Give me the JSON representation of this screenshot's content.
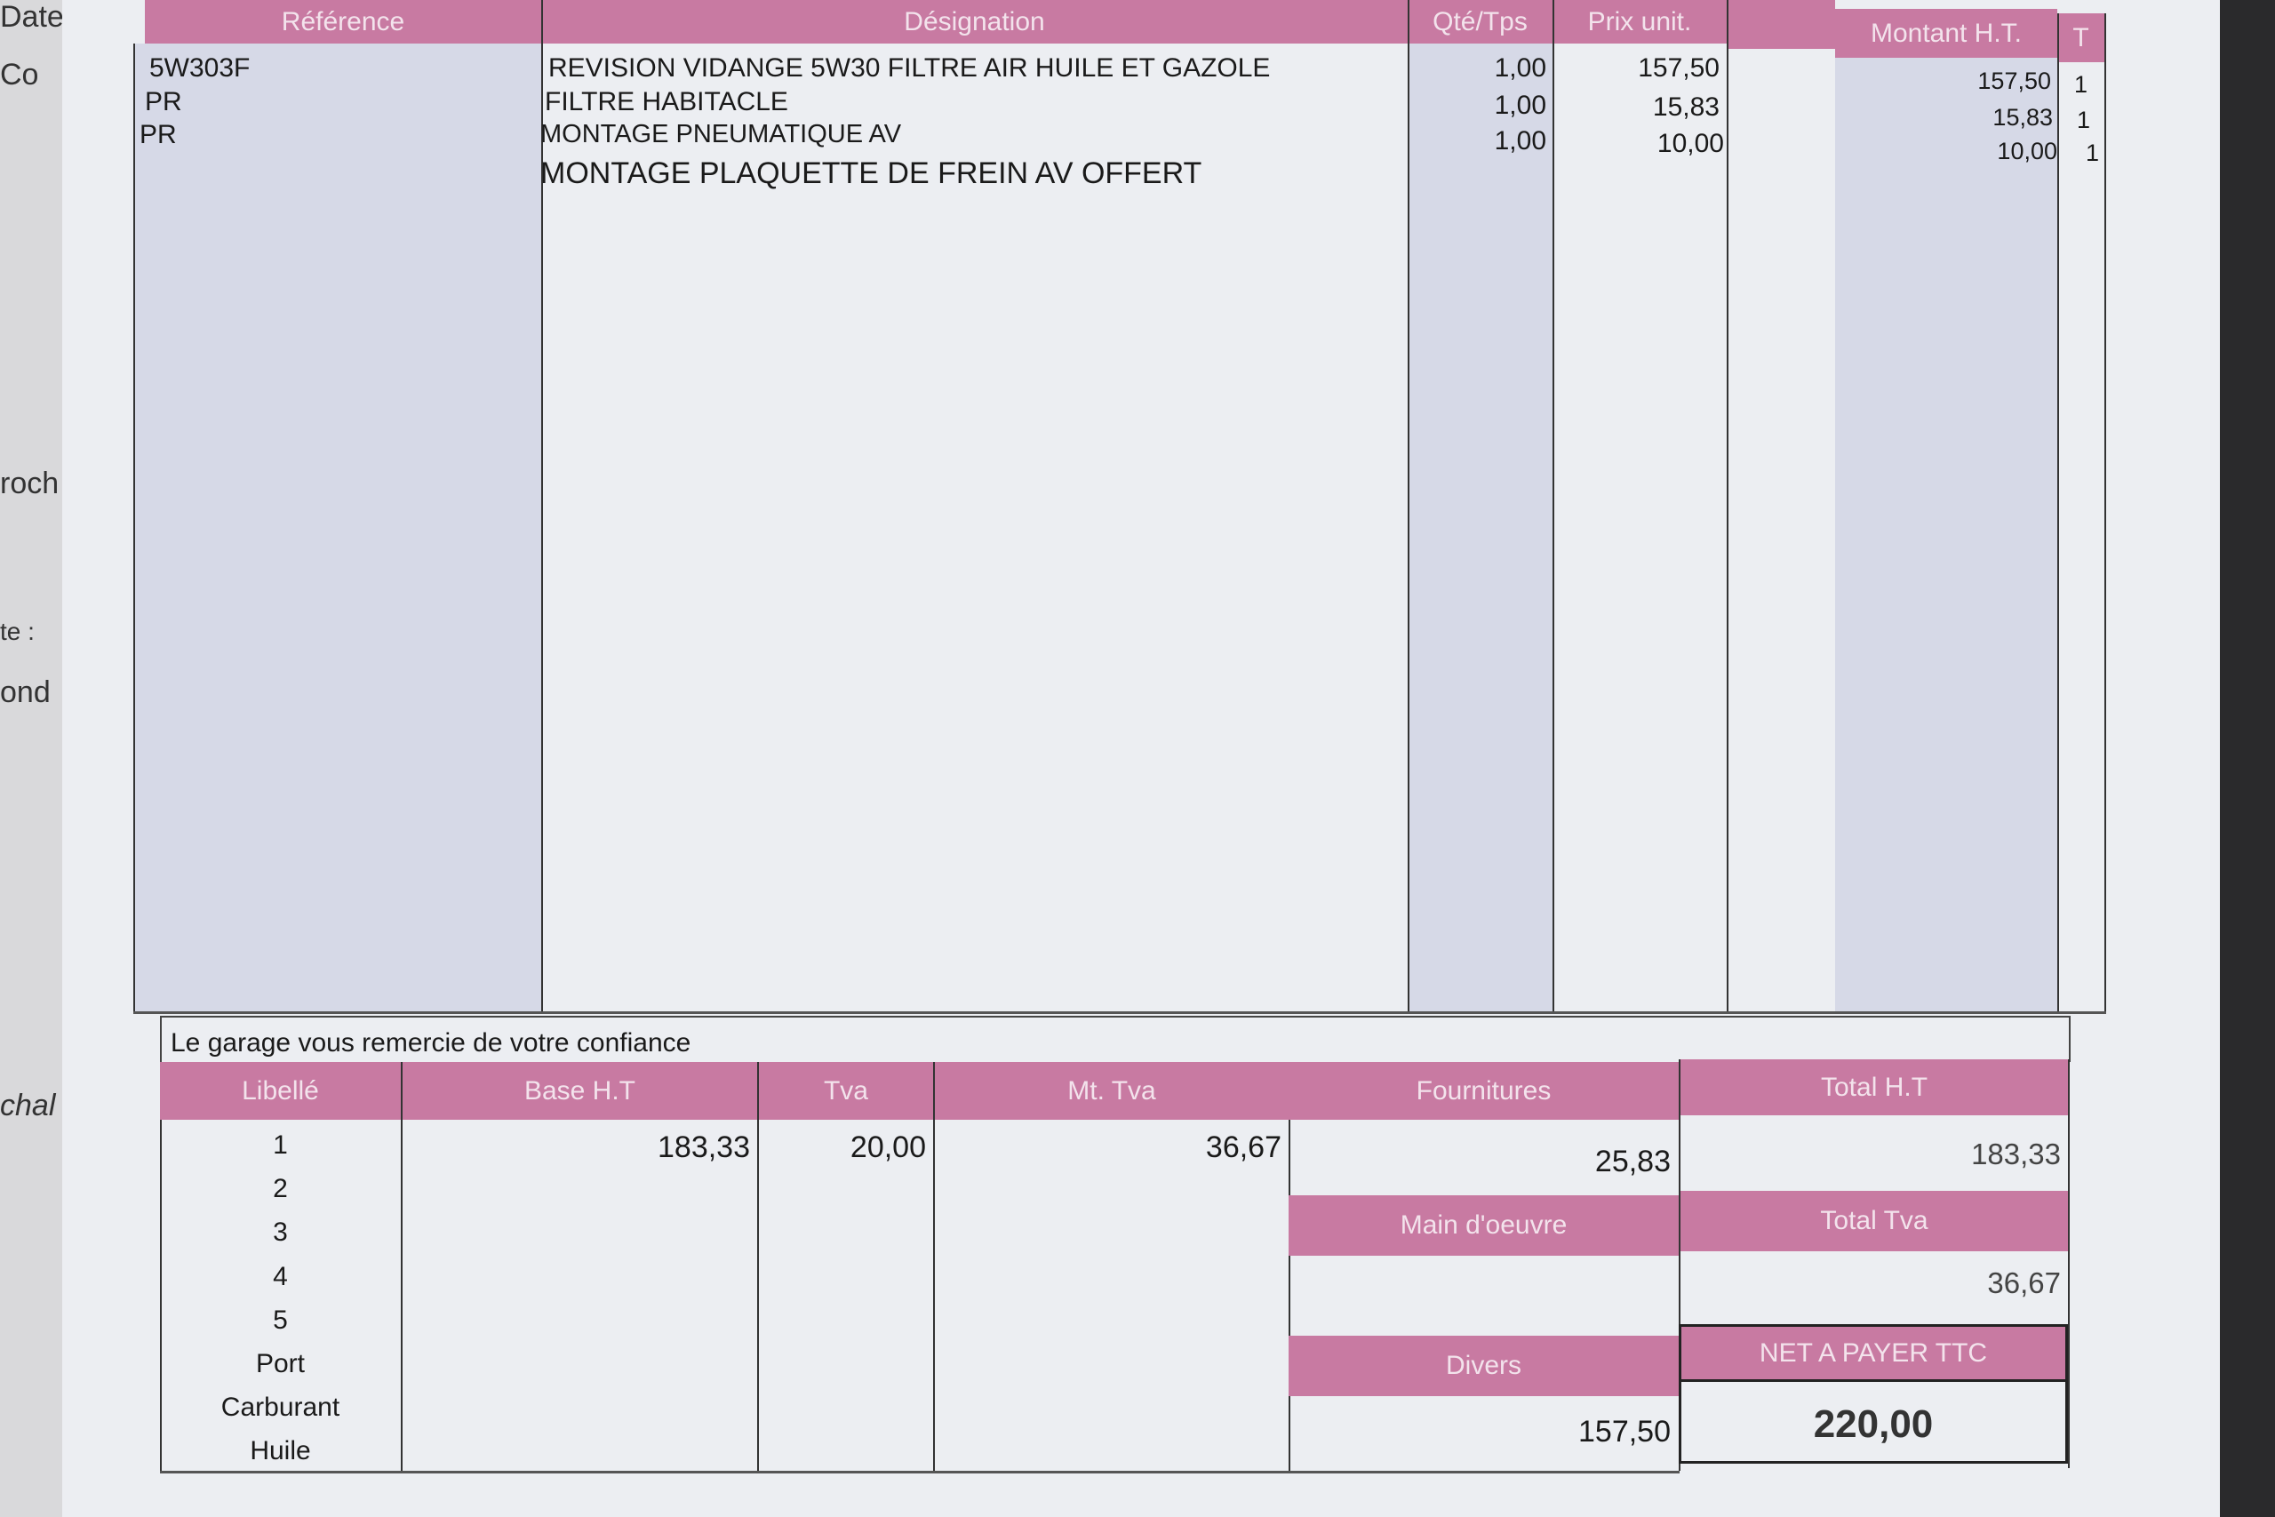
{
  "left_fragments": [
    "Date",
    "Co",
    "roch",
    "te :",
    "ond",
    "chal"
  ],
  "lines_table": {
    "headers": [
      "Référence",
      "Désignation",
      "Qté/Tps",
      "Prix unit.",
      "",
      "Montant H.T.",
      "T"
    ],
    "rows": [
      {
        "ref": "5W303F",
        "designation": "REVISION VIDANGE 5W30 FILTRE AIR HUILE ET GAZOLE",
        "qty": "1,00",
        "unit_price": "157,50",
        "amount": "157,50",
        "t": "1"
      },
      {
        "ref": "PR",
        "designation": "FILTRE HABITACLE",
        "qty": "1,00",
        "unit_price": "15,83",
        "amount": "15,83",
        "t": "1"
      },
      {
        "ref": "PR",
        "designation": "MONTAGE PNEUMATIQUE AV",
        "qty": "1,00",
        "unit_price": "10,00",
        "amount": "10,00",
        "t": "1"
      },
      {
        "ref": "",
        "designation": "MONTAGE PLAQUETTE DE FREIN AV OFFERT",
        "qty": "",
        "unit_price": "",
        "amount": "",
        "t": ""
      }
    ]
  },
  "thanks": "Le garage vous remercie de votre confiance",
  "vat_table": {
    "headers": [
      "Libellé",
      "Base H.T",
      "Tva",
      "Mt. Tva"
    ],
    "labels": [
      "1",
      "2",
      "3",
      "4",
      "5",
      "Port",
      "Carburant",
      "Huile"
    ],
    "row1": {
      "base": "183,33",
      "tva": "20,00",
      "mt_tva": "36,67"
    }
  },
  "summary": {
    "fournitures_label": "Fournitures",
    "fournitures": "25,83",
    "total_ht_label": "Total H.T",
    "total_ht": "183,33",
    "main_oeuvre_label": "Main d'oeuvre",
    "main_oeuvre": "",
    "total_tva_label": "Total Tva",
    "total_tva": "36,67",
    "divers_label": "Divers",
    "divers": "157,50",
    "net_label": "NET A PAYER TTC",
    "net": "220,00"
  },
  "colors": {
    "header_pink": "#c87aa2",
    "column_lavender": "#d6d9e7"
  }
}
